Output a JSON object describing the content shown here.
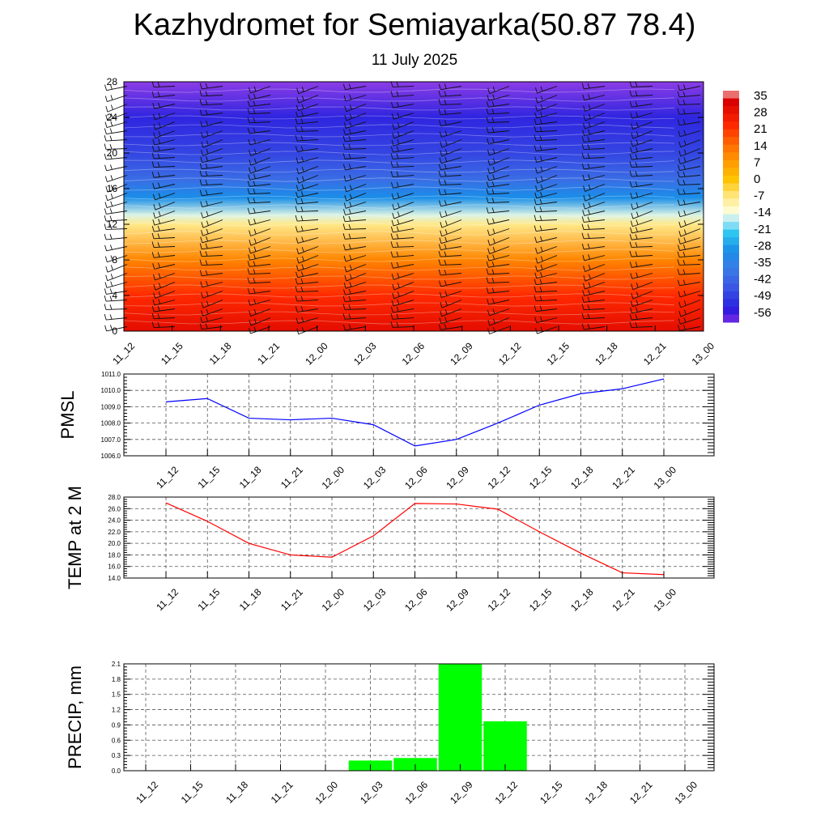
{
  "header": {
    "title": "Kazhydromet for Semiayarka(50.87 78.4)",
    "subtitle": "11 July 2025"
  },
  "chart_data": [
    {
      "type": "heatmap",
      "title": "",
      "x_tick_labels": [
        "11_12",
        "11_15",
        "11_18",
        "11_21",
        "12_00",
        "12_03",
        "12_06",
        "12_09",
        "12_12",
        "12_15",
        "12_18",
        "12_21",
        "13_00"
      ],
      "y_tick_labels": [
        "0",
        "4",
        "8",
        "12",
        "16",
        "20",
        "24",
        "28"
      ],
      "ylim": [
        0,
        28
      ],
      "colorbar_labels": [
        "35",
        "28",
        "21",
        "14",
        "7",
        "0",
        "-7",
        "-14",
        "-21",
        "-28",
        "-35",
        "-42",
        "-49",
        "-56"
      ],
      "colorbar_range": [
        -56,
        35
      ],
      "overlay": "wind barbs",
      "colors": {
        "warm": "#e8170e",
        "neutral": "#fffbc8",
        "cold": "#3a2ce0"
      },
      "temperature_profile": [
        {
          "level": 0,
          "value": 28
        },
        {
          "level": 4,
          "value": 21
        },
        {
          "level": 8,
          "value": 10
        },
        {
          "level": 12,
          "value": -7
        },
        {
          "level": 13,
          "value": -14
        },
        {
          "level": 15,
          "value": -28
        },
        {
          "level": 17,
          "value": -38
        },
        {
          "level": 20,
          "value": -45
        },
        {
          "level": 24,
          "value": -50
        },
        {
          "level": 28,
          "value": -56
        }
      ]
    },
    {
      "type": "line",
      "ylabel": "PMSL",
      "categories": [
        "11_12",
        "11_15",
        "11_18",
        "11_21",
        "12_00",
        "12_03",
        "12_06",
        "12_09",
        "12_12",
        "12_15",
        "12_18",
        "12_21",
        "13_00"
      ],
      "values": [
        1009.3,
        1009.5,
        1008.3,
        1008.2,
        1008.3,
        1007.9,
        1006.6,
        1007.0,
        1008.0,
        1009.1,
        1009.8,
        1010.1,
        1010.7
      ],
      "ylim": [
        1006.0,
        1011.0
      ],
      "y_tick_labels": [
        "1006.0",
        "1007.0",
        "1008.0",
        "1009.0",
        "1010.0",
        "1011.0"
      ],
      "color": "#0000ff",
      "grid": true
    },
    {
      "type": "line",
      "ylabel": "TEMP at 2 M",
      "categories": [
        "11_12",
        "11_15",
        "11_18",
        "11_21",
        "12_00",
        "12_03",
        "12_06",
        "12_09",
        "12_12",
        "12_15",
        "12_18",
        "12_21",
        "13_00"
      ],
      "values": [
        27.0,
        23.8,
        20.0,
        18.0,
        17.6,
        21.3,
        26.9,
        26.8,
        25.9,
        22.0,
        18.3,
        14.9,
        14.6
      ],
      "ylim": [
        14.0,
        28.0
      ],
      "y_tick_labels": [
        "14.0",
        "16.0",
        "18.0",
        "20.0",
        "22.0",
        "24.0",
        "26.0",
        "28.0"
      ],
      "color": "#ff0000",
      "grid": true
    },
    {
      "type": "bar",
      "ylabel": "PRECIP, mm",
      "categories": [
        "11_12",
        "11_15",
        "11_18",
        "11_21",
        "12_00",
        "12_03",
        "12_06",
        "12_09",
        "12_12",
        "12_15",
        "12_18",
        "12_21",
        "13_00"
      ],
      "values": [
        0,
        0,
        0,
        0,
        0,
        0.2,
        0.25,
        2.1,
        0.97,
        0,
        0,
        0,
        0
      ],
      "ylim": [
        0,
        2.1
      ],
      "y_tick_labels": [
        "0.0",
        "0.3",
        "0.6",
        "0.9",
        "1.2",
        "1.5",
        "1.8",
        "2.1"
      ],
      "color": "#00ff00",
      "grid": true
    }
  ]
}
